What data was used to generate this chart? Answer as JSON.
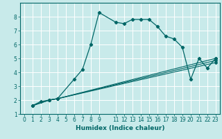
{
  "xlabel": "Humidex (Indice chaleur)",
  "ylabel": "",
  "background_color": "#c8eaea",
  "grid_color": "#ffffff",
  "line_color": "#006666",
  "xlim": [
    -0.5,
    23.5
  ],
  "ylim": [
    1,
    9
  ],
  "xticks": [
    0,
    1,
    2,
    3,
    4,
    5,
    6,
    7,
    8,
    9,
    11,
    12,
    13,
    14,
    15,
    16,
    17,
    18,
    19,
    20,
    21,
    22,
    23
  ],
  "yticks": [
    1,
    2,
    3,
    4,
    5,
    6,
    7,
    8
  ],
  "line1_x": [
    1,
    2,
    3,
    4,
    6,
    7,
    8,
    9,
    11,
    12,
    13,
    14,
    15,
    16,
    17,
    18,
    19,
    20,
    21,
    22,
    23
  ],
  "line1_y": [
    1.6,
    1.9,
    2.0,
    2.1,
    3.5,
    4.2,
    6.0,
    8.3,
    7.6,
    7.5,
    7.8,
    7.8,
    7.8,
    7.3,
    6.6,
    6.4,
    5.8,
    3.5,
    5.0,
    4.3,
    5.0
  ],
  "line2_x": [
    1,
    3,
    4,
    23
  ],
  "line2_y": [
    1.6,
    2.0,
    2.1,
    5.0
  ],
  "line3_x": [
    1,
    3,
    4,
    23
  ],
  "line3_y": [
    1.6,
    2.0,
    2.1,
    4.85
  ],
  "line4_x": [
    1,
    3,
    4,
    23
  ],
  "line4_y": [
    1.6,
    2.0,
    2.1,
    4.7
  ]
}
